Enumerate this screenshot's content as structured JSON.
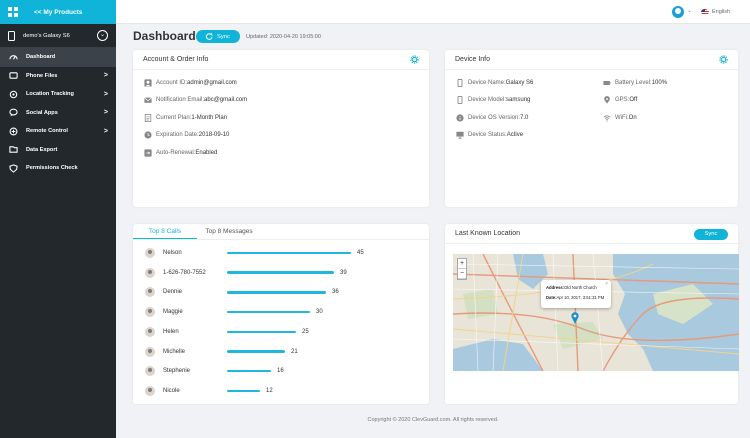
{
  "sidebar": {
    "top_label": "<< My Products",
    "device_name": "demo's Galaxy S6",
    "items": [
      {
        "label": "Dashboard",
        "icon": "dashboard-icon",
        "active": true,
        "arrow": false
      },
      {
        "label": "Phone Files",
        "icon": "phone-files-icon",
        "active": false,
        "arrow": true
      },
      {
        "label": "Location Tracking",
        "icon": "location-icon",
        "active": false,
        "arrow": true
      },
      {
        "label": "Social Apps",
        "icon": "chat-icon",
        "active": false,
        "arrow": true
      },
      {
        "label": "Remote Control",
        "icon": "remote-control-icon",
        "active": false,
        "arrow": true
      },
      {
        "label": "Data Export",
        "icon": "export-icon",
        "active": false,
        "arrow": false
      },
      {
        "label": "Permissions Check",
        "icon": "shield-icon",
        "active": false,
        "arrow": false
      }
    ],
    "arrow_glyph": ">"
  },
  "topbar": {
    "language": "English"
  },
  "header": {
    "title": "Dashboard",
    "sync_label": "Sync",
    "updated": "Updated: 2020-04-20 19:05:00"
  },
  "account": {
    "title": "Account & Order Info",
    "rows": [
      {
        "key": "Account ID: ",
        "value": "admin@gmail.com"
      },
      {
        "key": "Notification Email: ",
        "value": "abc@gmail.com"
      },
      {
        "key": "Current Plan: ",
        "value": "1-Month Plan"
      },
      {
        "key": "Expiration Date: ",
        "value": "2018-09-10"
      },
      {
        "key": "Auto-Renewal: ",
        "value": "Enabled"
      }
    ]
  },
  "device": {
    "title": "Device Info",
    "left_rows": [
      {
        "key": "Device Name: ",
        "value": "Galaxy S6"
      },
      {
        "key": "Device Model: ",
        "value": "samsung"
      },
      {
        "key": "Device OS Version: ",
        "value": "7.0"
      },
      {
        "key": "Device Status: ",
        "value": "Active"
      }
    ],
    "right_rows": [
      {
        "key": "Battery Level:",
        "value": "100%"
      },
      {
        "key": "GPS: ",
        "value": "Off"
      },
      {
        "key": "WiFi: ",
        "value": "On"
      }
    ]
  },
  "calls": {
    "tabs": [
      "Top 8 Calls",
      "Top 8 Messages"
    ],
    "max": 45,
    "rows": [
      {
        "name": "Nelson",
        "count": 45
      },
      {
        "name": "1-626-780-7552",
        "count": 39
      },
      {
        "name": "Dennie",
        "count": 36
      },
      {
        "name": "Maggie",
        "count": 30
      },
      {
        "name": "Helen",
        "count": 25
      },
      {
        "name": "Michelle",
        "count": 21
      },
      {
        "name": "Stephenie",
        "count": 16
      },
      {
        "name": "Nicole",
        "count": 12
      }
    ]
  },
  "location": {
    "title": "Last Known Location",
    "sync_label": "Sync",
    "zoom_in": "+",
    "zoom_out": "−",
    "popup_address_key": "Address:",
    "popup_address": "Old North Church",
    "popup_date_key": "Date:",
    "popup_date": "Apr 10, 2017, 3:51:31 PM",
    "popup_close": "×"
  },
  "footer": {
    "copyright": "Copyright © 2020 ClevGuard.com. All rights reserved."
  },
  "colors": {
    "accent": "#0fb4d8",
    "sidebar_bg": "#23282d",
    "bar": "#1fb6e0"
  }
}
